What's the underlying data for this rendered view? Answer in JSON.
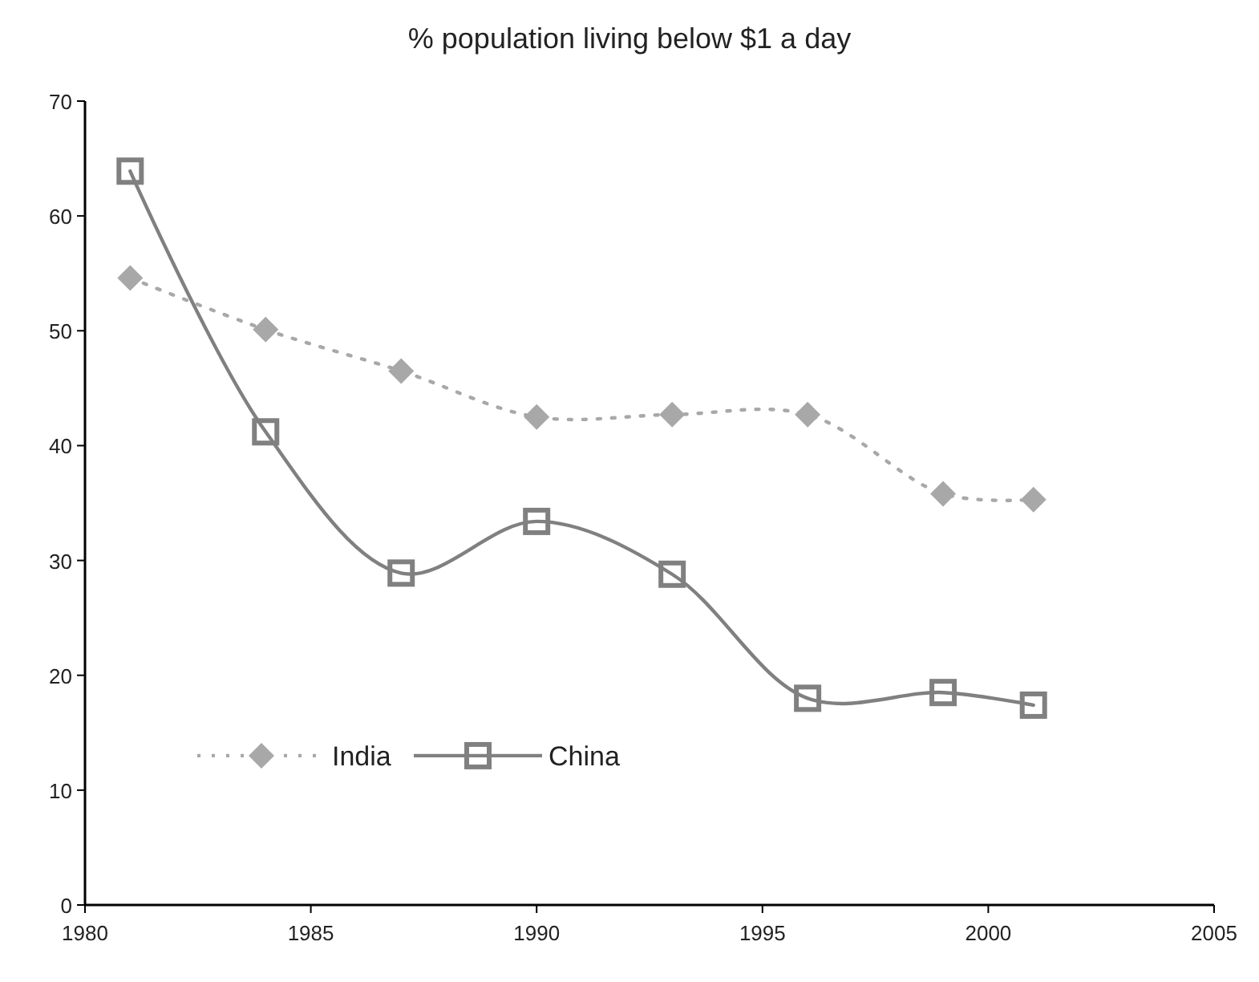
{
  "chart_data": {
    "type": "line",
    "title": "% population living below $1 a day",
    "x": [
      1981,
      1984,
      1987,
      1990,
      1993,
      1996,
      1999,
      2001
    ],
    "series": [
      {
        "name": "India",
        "color": "#a8a8a8",
        "marker": "diamond",
        "line_style": "dotted",
        "values": [
          54.6,
          50.1,
          46.5,
          42.5,
          42.7,
          42.7,
          35.8,
          35.3
        ]
      },
      {
        "name": "China",
        "color": "#808080",
        "marker": "square",
        "line_style": "solid",
        "values": [
          63.9,
          41.2,
          28.9,
          33.4,
          28.8,
          18.0,
          18.5,
          17.4
        ]
      }
    ],
    "xlim": [
      1980,
      2005
    ],
    "xticks": [
      1980,
      1985,
      1990,
      1995,
      2000,
      2005
    ],
    "ylim": [
      0,
      70
    ],
    "yticks": [
      0,
      10,
      20,
      30,
      40,
      50,
      60,
      70
    ],
    "grid": false,
    "legend": "bottom left"
  }
}
